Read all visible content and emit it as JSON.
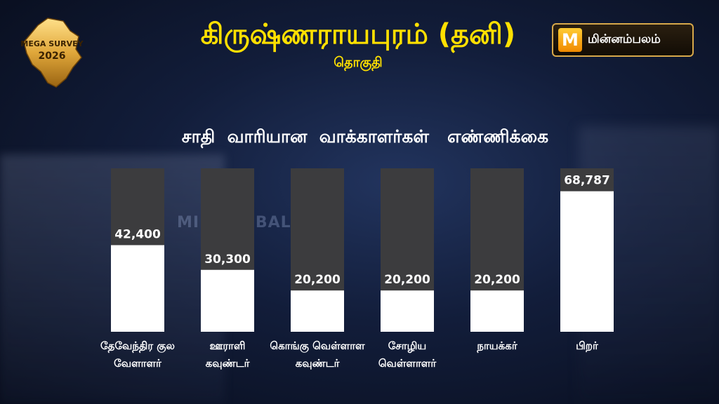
{
  "badge": {
    "line1": "MEGA SURVEY",
    "line2": "2026"
  },
  "header": {
    "title": "கிருஷ்ணராயபுரம் (தனி)",
    "subtitle": "தொகுதி"
  },
  "logo": {
    "mark": "M",
    "name": "மின்னம்பலம்"
  },
  "watermark": "MINNAMBALAM",
  "colors": {
    "title": "#ffe000",
    "bar": "#ffffff",
    "bar_track": "#3c3c3e"
  },
  "chart_data": {
    "type": "bar",
    "title": "சாதி  வாரியான  வாக்காளர்கள்   எண்ணிக்கை",
    "categories": [
      [
        "தேவேந்திர குல",
        "வேளாளர்"
      ],
      [
        "ஊராளி",
        "கவுண்டர்"
      ],
      [
        "கொங்கு வெள்ளாள",
        "கவுண்டர்"
      ],
      [
        "சோழிய",
        "வெள்ளாளர்"
      ],
      [
        "நாயக்கர்"
      ],
      [
        "பிறர்"
      ]
    ],
    "values": [
      42400,
      30300,
      20200,
      20200,
      20200,
      68787
    ],
    "value_labels": [
      "42,400",
      "30,300",
      "20,200",
      "20,200",
      "20,200",
      "68,787"
    ],
    "ylim": [
      0,
      80000
    ],
    "grid": false,
    "legend": "none"
  }
}
